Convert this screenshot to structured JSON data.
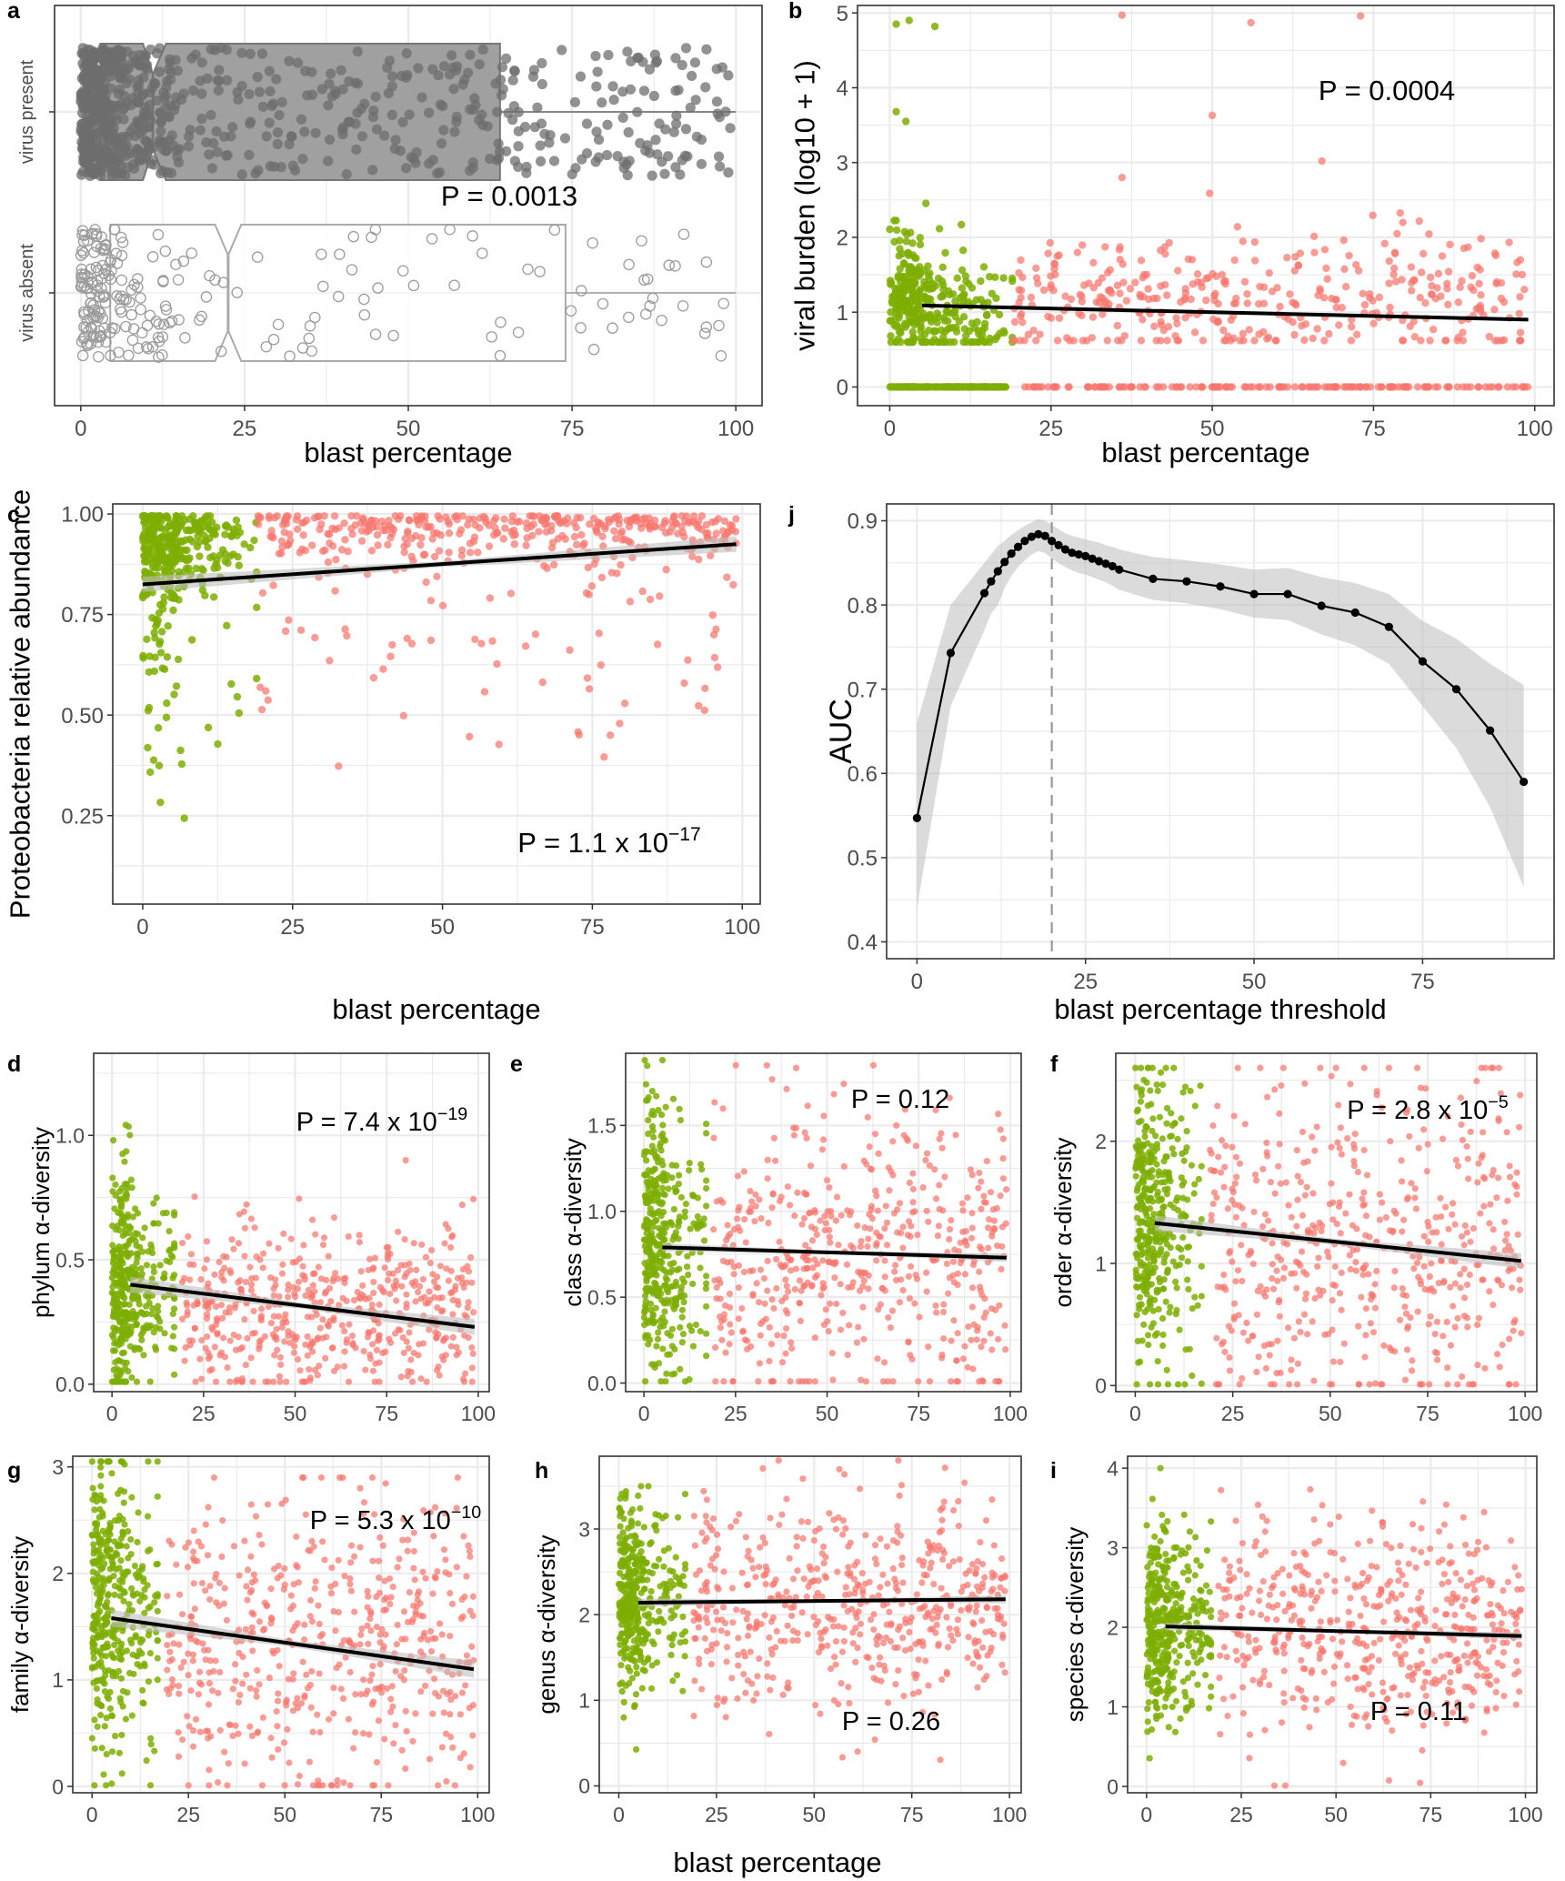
{
  "figure": {
    "common_xlabel": "blast percentage"
  },
  "colors": {
    "low": "#7cae00",
    "high": "#f8766d",
    "present": "#777777",
    "absent": "#aaaaaa",
    "fit": "#000000",
    "band": "#bebebe",
    "grid": "#ebebeb",
    "frame": "#333333",
    "tick_text": "#4d4d4d"
  },
  "chart_data": [
    {
      "panel": "a",
      "type": "box",
      "xlabel": "blast percentage",
      "ylabel": "",
      "xlim": [
        -4,
        104
      ],
      "xticks": [
        0,
        25,
        50,
        75,
        100
      ],
      "categories": [
        "virus absent",
        "virus present"
      ],
      "groups": [
        {
          "name": "virus absent",
          "level": 0,
          "min": 0,
          "q1": 4.5,
          "median": 22.5,
          "q3": 74,
          "max": 100,
          "notch": [
            20.5,
            24.5
          ],
          "n": 230
        },
        {
          "name": "virus present",
          "level": 1,
          "min": 0,
          "q1": 3,
          "median": 11,
          "q3": 64,
          "max": 100,
          "notch": [
            9.5,
            13
          ],
          "n": 800
        }
      ],
      "annotation": {
        "text": "P = 0.0013"
      }
    },
    {
      "panel": "b",
      "type": "scatter",
      "xlabel": "blast percentage",
      "ylabel": "viral burden (log10 + 1)",
      "xlim": [
        -5,
        103
      ],
      "ylim": [
        -0.25,
        5.1
      ],
      "xticks": [
        0,
        25,
        50,
        75,
        100
      ],
      "yticks": [
        0,
        1,
        2,
        3,
        4,
        5
      ],
      "threshold": 20,
      "fit": {
        "x0": 5,
        "y0": 1.09,
        "x1": 99,
        "y1": 0.9,
        "band": 0
      },
      "annotation": {
        "text": "P = 0.0004"
      }
    },
    {
      "panel": "c",
      "type": "scatter",
      "xlabel": "blast percentage",
      "ylabel": "Proteobacteria relative abundance",
      "xlim": [
        -5,
        103
      ],
      "ylim": [
        0.03,
        1.025
      ],
      "xticks": [
        0,
        25,
        50,
        75,
        100
      ],
      "yticks": [
        0.25,
        0.5,
        0.75,
        1.0
      ],
      "ytick_labels": [
        "0.25",
        "0.50",
        "0.75",
        "1.00"
      ],
      "threshold": 20,
      "fit": {
        "x0": 0,
        "y0": 0.825,
        "x1": 99,
        "y1": 0.925,
        "band": 0.012
      },
      "annotation": {
        "text": "P = 1.1 x 10",
        "sup": "−17"
      }
    },
    {
      "panel": "j",
      "type": "line",
      "xlabel": "blast percentage threshold",
      "ylabel": "AUC",
      "xlim": [
        -4.5,
        94.5
      ],
      "ylim": [
        0.38,
        0.92
      ],
      "xticks": [
        0,
        25,
        50,
        75
      ],
      "yticks": [
        0.4,
        0.5,
        0.6,
        0.7,
        0.8,
        0.9
      ],
      "vline": 20,
      "x": [
        0,
        5,
        10,
        11,
        12,
        13,
        14,
        15,
        16,
        17,
        18,
        19,
        20,
        21,
        22,
        23,
        24,
        25,
        26,
        27,
        28,
        29,
        30,
        35,
        40,
        45,
        50,
        55,
        60,
        65,
        70,
        75,
        80,
        85,
        90
      ],
      "values": [
        0.547,
        0.743,
        0.814,
        0.828,
        0.84,
        0.851,
        0.861,
        0.869,
        0.876,
        0.881,
        0.884,
        0.882,
        0.876,
        0.871,
        0.866,
        0.862,
        0.86,
        0.858,
        0.855,
        0.852,
        0.849,
        0.846,
        0.842,
        0.831,
        0.828,
        0.822,
        0.813,
        0.813,
        0.799,
        0.791,
        0.774,
        0.733,
        0.7,
        0.651,
        0.59
      ],
      "upper": [
        0.66,
        0.8,
        0.85,
        0.86,
        0.87,
        0.876,
        0.883,
        0.889,
        0.894,
        0.898,
        0.902,
        0.9,
        0.895,
        0.89,
        0.885,
        0.882,
        0.88,
        0.878,
        0.876,
        0.874,
        0.871,
        0.869,
        0.866,
        0.857,
        0.853,
        0.848,
        0.842,
        0.844,
        0.833,
        0.826,
        0.813,
        0.781,
        0.76,
        0.73,
        0.705
      ],
      "lower": [
        0.44,
        0.68,
        0.77,
        0.79,
        0.8,
        0.82,
        0.835,
        0.845,
        0.853,
        0.86,
        0.864,
        0.862,
        0.855,
        0.85,
        0.845,
        0.841,
        0.838,
        0.836,
        0.833,
        0.83,
        0.827,
        0.823,
        0.818,
        0.806,
        0.802,
        0.795,
        0.785,
        0.782,
        0.765,
        0.752,
        0.73,
        0.68,
        0.63,
        0.56,
        0.465
      ]
    },
    {
      "panel": "d",
      "type": "scatter",
      "xlabel": "",
      "ylabel": "phylum α-diversity",
      "xlim": [
        -5,
        103
      ],
      "ylim": [
        -0.03,
        1.33
      ],
      "xticks": [
        0,
        25,
        50,
        75,
        100
      ],
      "yticks": [
        0,
        0.5,
        1.0
      ],
      "ytick_labels": [
        "0.0",
        "0.5",
        "1.0"
      ],
      "threshold": 18,
      "fit": {
        "x0": 5,
        "y0": 0.4,
        "x1": 99,
        "y1": 0.23,
        "band": 0.02
      },
      "annotation": {
        "text": "P = 7.4 x 10",
        "sup": "−19"
      }
    },
    {
      "panel": "e",
      "type": "scatter",
      "xlabel": "",
      "ylabel": "class α-diversity",
      "xlim": [
        -5,
        103
      ],
      "ylim": [
        -0.05,
        1.92
      ],
      "xticks": [
        0,
        25,
        50,
        75,
        100
      ],
      "yticks": [
        0,
        0.5,
        1.0,
        1.5
      ],
      "ytick_labels": [
        "0.0",
        "0.5",
        "1.0",
        "1.5"
      ],
      "threshold": 18,
      "fit": {
        "x0": 5,
        "y0": 0.79,
        "x1": 99,
        "y1": 0.73,
        "band": 0.015
      },
      "annotation": {
        "text": "P = 0.12"
      }
    },
    {
      "panel": "f",
      "type": "scatter",
      "xlabel": "",
      "ylabel": "order α-diversity",
      "xlim": [
        -5,
        103
      ],
      "ylim": [
        -0.05,
        2.72
      ],
      "xticks": [
        0,
        25,
        50,
        75,
        100
      ],
      "yticks": [
        0,
        1,
        2
      ],
      "threshold": 18,
      "fit": {
        "x0": 5,
        "y0": 1.33,
        "x1": 99,
        "y1": 1.02,
        "band": 0.04
      },
      "annotation": {
        "text": "P = 2.8 x 10",
        "sup": "−5"
      }
    },
    {
      "panel": "g",
      "type": "scatter",
      "xlabel": "",
      "ylabel": "family α-diversity",
      "xlim": [
        -5,
        103
      ],
      "ylim": [
        -0.06,
        3.1
      ],
      "xticks": [
        0,
        25,
        50,
        75,
        100
      ],
      "yticks": [
        0,
        1,
        2,
        3
      ],
      "threshold": 18,
      "fit": {
        "x0": 5,
        "y0": 1.58,
        "x1": 99,
        "y1": 1.1,
        "band": 0.05
      },
      "annotation": {
        "text": "P = 5.3 x 10",
        "sup": "−10"
      }
    },
    {
      "panel": "h",
      "type": "scatter",
      "xlabel": "",
      "ylabel": "genus α-diversity",
      "xlim": [
        -5,
        103
      ],
      "ylim": [
        -0.08,
        3.85
      ],
      "xticks": [
        0,
        25,
        50,
        75,
        100
      ],
      "yticks": [
        0,
        1,
        2,
        3
      ],
      "threshold": 18,
      "fit": {
        "x0": 5,
        "y0": 2.14,
        "x1": 99,
        "y1": 2.18,
        "band": 0.03
      },
      "annotation": {
        "text": "P = 0.26"
      }
    },
    {
      "panel": "i",
      "type": "scatter",
      "xlabel": "",
      "ylabel": "species α-diversity",
      "xlim": [
        -5,
        103
      ],
      "ylim": [
        -0.08,
        4.15
      ],
      "xticks": [
        0,
        25,
        50,
        75,
        100
      ],
      "yticks": [
        0,
        1,
        2,
        3,
        4
      ],
      "threshold": 18,
      "fit": {
        "x0": 5,
        "y0": 2.01,
        "x1": 99,
        "y1": 1.89,
        "band": 0.03
      },
      "annotation": {
        "text": "P = 0.11"
      }
    }
  ]
}
